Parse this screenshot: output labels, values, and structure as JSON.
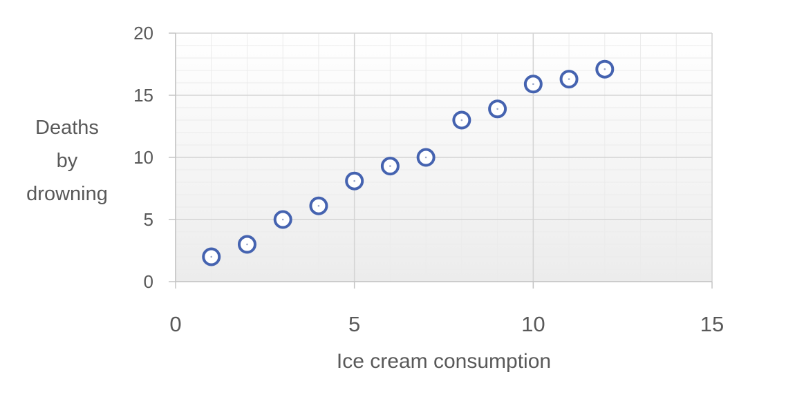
{
  "chart_data": {
    "type": "scatter",
    "title": "",
    "xlabel": "Ice cream consumption",
    "ylabel_lines": [
      "Deaths",
      "by",
      "drowning"
    ],
    "xlim": [
      0,
      15
    ],
    "ylim": [
      0,
      20
    ],
    "x_ticks": [
      0,
      5,
      10,
      15
    ],
    "y_ticks": [
      0,
      5,
      10,
      15,
      20
    ],
    "grid": true,
    "legend": "none",
    "marker_color": "#4563b0",
    "series": [
      {
        "points": [
          {
            "x": 1,
            "y": 2
          },
          {
            "x": 2,
            "y": 3
          },
          {
            "x": 3,
            "y": 5
          },
          {
            "x": 4,
            "y": 6.1
          },
          {
            "x": 5,
            "y": 8.1
          },
          {
            "x": 6,
            "y": 9.3
          },
          {
            "x": 7,
            "y": 10
          },
          {
            "x": 8,
            "y": 13
          },
          {
            "x": 9,
            "y": 13.9
          },
          {
            "x": 10,
            "y": 15.9
          },
          {
            "x": 11,
            "y": 16.3
          },
          {
            "x": 12,
            "y": 17.1
          }
        ]
      }
    ]
  }
}
